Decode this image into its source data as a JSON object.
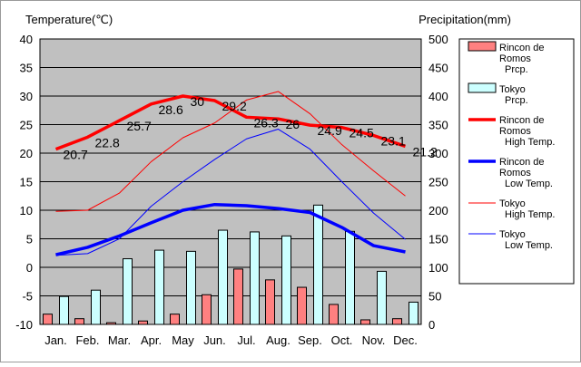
{
  "chart_data": {
    "type": "bar",
    "y_left_label": "Temperature(℃)",
    "y_right_label": "Precipitation(mm)",
    "y_left_range": [
      -10,
      40
    ],
    "y_left_ticks": [
      -10,
      -5,
      0,
      5,
      10,
      15,
      20,
      25,
      30,
      35,
      40
    ],
    "y_right_range": [
      0,
      500
    ],
    "y_right_ticks": [
      0,
      50,
      100,
      150,
      200,
      250,
      300,
      350,
      400,
      450,
      500
    ],
    "grid": true,
    "legend_position": "right",
    "categories": [
      "Jan.",
      "Feb.",
      "Mar.",
      "Apr.",
      "May",
      "Jun.",
      "Jul.",
      "Aug.",
      "Sep.",
      "Oct.",
      "Nov.",
      "Dec."
    ],
    "bar_series": [
      {
        "legend_lines": [
          "Rincon de",
          "Romos",
          "Prcp."
        ],
        "color": "#ff8080",
        "values": [
          18,
          10,
          3,
          6,
          18,
          52,
          97,
          78,
          65,
          35,
          8,
          10
        ]
      },
      {
        "legend_lines": [
          "Tokyo",
          "Prcp."
        ],
        "color": "#ccffff",
        "values": [
          49,
          60,
          115,
          130,
          128,
          165,
          162,
          155,
          209,
          163,
          93,
          39
        ]
      }
    ],
    "line_series": [
      {
        "legend_lines": [
          "Rincon de",
          "Romos",
          "High Temp."
        ],
        "color": "#ff0000",
        "width": 3.5,
        "labeled": true,
        "labels": [
          "20.7",
          "22.8",
          "25.7",
          "28.6",
          "30",
          "29.2",
          "26.3",
          "26",
          "24.9",
          "24.5",
          "23.1",
          "21.2"
        ],
        "values": [
          20.7,
          22.8,
          25.7,
          28.6,
          30,
          29.2,
          26.3,
          26,
          24.9,
          24.5,
          23.1,
          21.2
        ]
      },
      {
        "legend_lines": [
          "Rincon de",
          "Romos",
          "Low Temp."
        ],
        "color": "#0000ff",
        "width": 3.5,
        "labeled": false,
        "values": [
          2.2,
          3.5,
          5.5,
          7.8,
          10.0,
          11.0,
          10.8,
          10.3,
          9.6,
          7.0,
          3.8,
          2.7
        ]
      },
      {
        "legend_lines": [
          "Tokyo",
          "High Temp."
        ],
        "color": "#ff0000",
        "width": 1,
        "labeled": false,
        "values": [
          9.8,
          10.0,
          13.0,
          18.5,
          22.7,
          25.3,
          29.3,
          30.8,
          26.9,
          21.5,
          16.9,
          12.5
        ]
      },
      {
        "legend_lines": [
          "Tokyo",
          "Low Temp."
        ],
        "color": "#0000ff",
        "width": 1,
        "labeled": false,
        "values": [
          2.1,
          2.4,
          5.0,
          10.7,
          15.0,
          18.9,
          22.5,
          24.2,
          20.7,
          15.0,
          9.5,
          4.9
        ]
      }
    ]
  }
}
